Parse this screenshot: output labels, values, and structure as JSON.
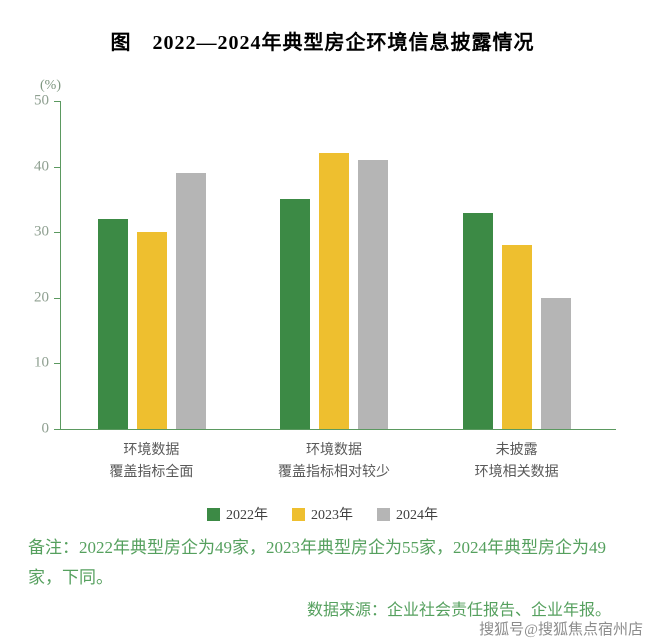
{
  "title": "图　2022—2024年典型房企环境信息披露情况",
  "chart_data": {
    "type": "bar",
    "title": "图　2022—2024年典型房企环境信息披露情况",
    "unit_label": "(%)",
    "xlabel": "",
    "ylabel": "(%)",
    "ylim": [
      0,
      50
    ],
    "yticks": [
      0,
      10,
      20,
      30,
      40,
      50
    ],
    "grid": false,
    "legend_position": "bottom",
    "categories": [
      [
        "环境数据",
        "覆盖指标全面"
      ],
      [
        "环境数据",
        "覆盖指标相对较少"
      ],
      [
        "未披露",
        "环境相关数据"
      ]
    ],
    "series": [
      {
        "name": "2022年",
        "color": "#3c8a45",
        "values": [
          32,
          35,
          33
        ]
      },
      {
        "name": "2023年",
        "color": "#eebf2f",
        "values": [
          30,
          42,
          28
        ]
      },
      {
        "name": "2024年",
        "color": "#b5b5b5",
        "values": [
          39,
          41,
          20
        ]
      }
    ],
    "axis_color": "#5b9960",
    "tick_label_color": "#8fa091"
  },
  "note": "备注：2022年典型房企为49家，2023年典型房企为55家，2024年典型房企为49家，下同。",
  "source": "数据来源：企业社会责任报告、企业年报。",
  "watermark": "搜狐号@搜狐焦点宿州店"
}
